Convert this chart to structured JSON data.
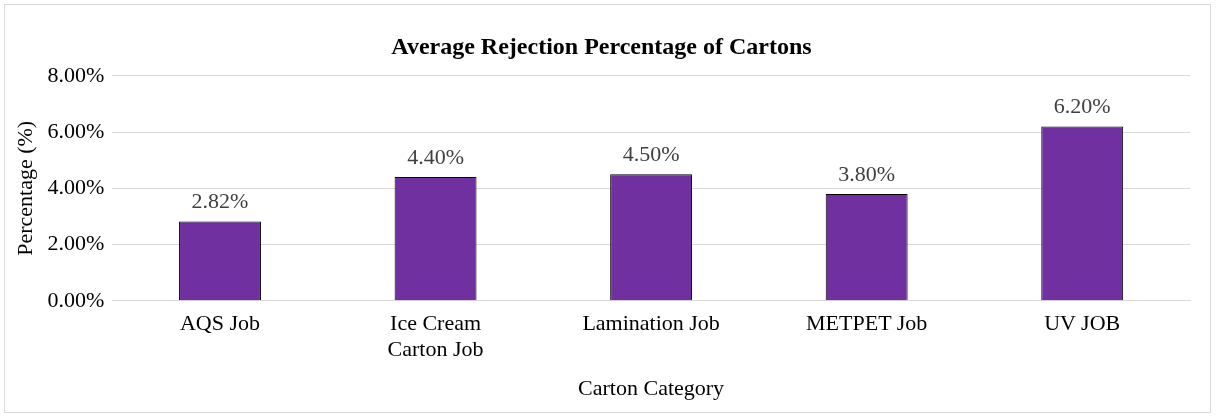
{
  "chart_data": {
    "type": "bar",
    "title": "Average Rejection Percentage of Cartons",
    "xlabel": "Carton Category",
    "ylabel": "Percentage (%)",
    "categories": [
      "AQS Job",
      "Ice Cream Carton Job",
      "Lamination Job",
      "METPET Job",
      "UV JOB"
    ],
    "values": [
      2.82,
      4.4,
      4.5,
      3.8,
      6.2
    ],
    "value_labels": [
      "2.82%",
      "4.40%",
      "4.50%",
      "3.80%",
      "6.20%"
    ],
    "color": "#7030a0",
    "ylim": [
      0,
      8
    ],
    "yticks": [
      {
        "value": 0,
        "label": "0.00%"
      },
      {
        "value": 2,
        "label": "2.00%"
      },
      {
        "value": 4,
        "label": "4.00%"
      },
      {
        "value": 6,
        "label": "6.00%"
      },
      {
        "value": 8,
        "label": "8.00%"
      }
    ],
    "grid": "y",
    "legend": false
  }
}
